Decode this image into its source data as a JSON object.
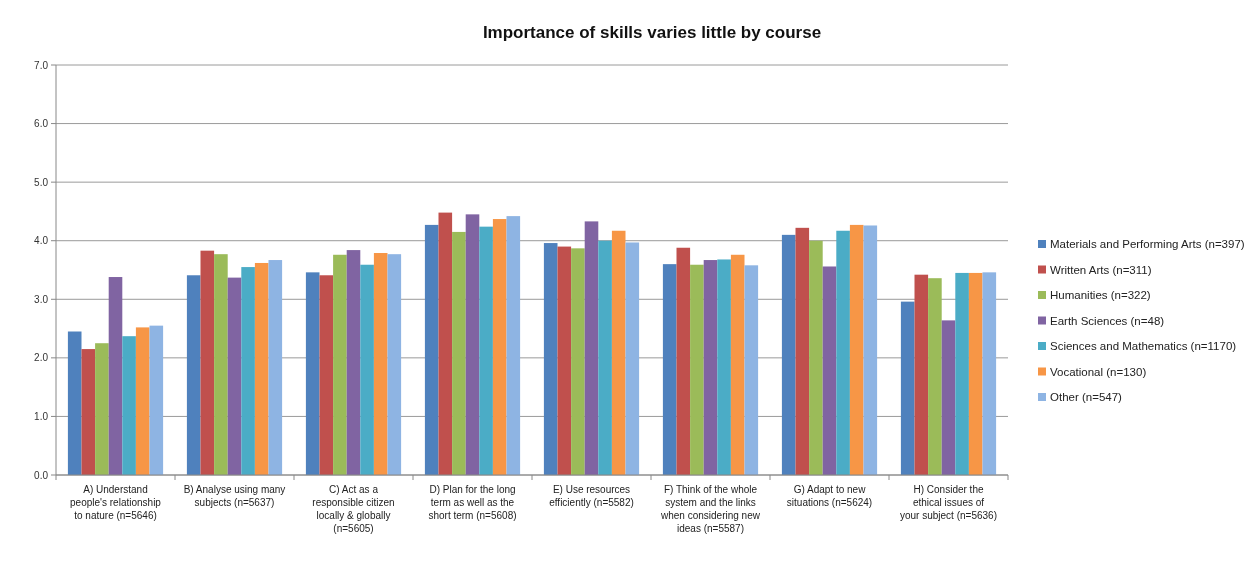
{
  "chart_data": {
    "type": "bar",
    "title": "Importance of skills varies little by course",
    "categories": [
      "A) Understand people's relationship to nature (n=5646)",
      "B) Analyse using many subjects (n=5637)",
      "C) Act as a responsible citizen locally & globally (n=5605)",
      "D) Plan for the long term as well as the short term (n=5608)",
      "E) Use resources efficiently (n=5582)",
      "F) Think of the whole system and the links when considering new ideas (n=5587)",
      "G) Adapt to new situations (n=5624)",
      "H) Consider the ethical issues of your subject (n=5636)"
    ],
    "series": [
      {
        "name": "Materials and Performing Arts (n=397)",
        "color": "#4f81bd",
        "values": [
          2.45,
          3.41,
          3.46,
          4.27,
          3.96,
          3.6,
          4.1,
          2.96
        ]
      },
      {
        "name": "Written Arts (n=311)",
        "color": "#c0504d",
        "values": [
          2.15,
          3.83,
          3.41,
          4.48,
          3.9,
          3.88,
          4.22,
          3.42
        ]
      },
      {
        "name": "Humanities (n=322)",
        "color": "#9bbb59",
        "values": [
          2.25,
          3.77,
          3.76,
          4.15,
          3.87,
          3.59,
          4.0,
          3.36
        ]
      },
      {
        "name": "Earth Sciences (n=48)",
        "color": "#8064a2",
        "values": [
          3.38,
          3.37,
          3.84,
          4.45,
          4.33,
          3.67,
          3.56,
          2.64
        ]
      },
      {
        "name": "Sciences and Mathematics (n=1170)",
        "color": "#4bacc6",
        "values": [
          2.37,
          3.55,
          3.59,
          4.24,
          4.0,
          3.68,
          4.17,
          3.45
        ]
      },
      {
        "name": "Vocational (n=130)",
        "color": "#f79646",
        "values": [
          2.52,
          3.62,
          3.79,
          4.37,
          4.17,
          3.76,
          4.27,
          3.45
        ]
      },
      {
        "name": "Other (n=547)",
        "color": "#8eb4e3",
        "values": [
          2.55,
          3.67,
          3.77,
          4.42,
          3.97,
          3.58,
          4.26,
          3.46
        ]
      }
    ],
    "ylim": [
      0,
      7
    ],
    "yticks": [
      {
        "value": 0,
        "label": "0.0"
      },
      {
        "value": 1,
        "label": "1.0"
      },
      {
        "value": 2,
        "label": "2.0"
      },
      {
        "value": 3,
        "label": "3.0"
      },
      {
        "value": 4,
        "label": "4.0"
      },
      {
        "value": 5,
        "label": "5.0"
      },
      {
        "value": 6,
        "label": "6.0"
      },
      {
        "value": 7,
        "label": "7.0"
      }
    ],
    "grid": "y",
    "legend": "right"
  }
}
